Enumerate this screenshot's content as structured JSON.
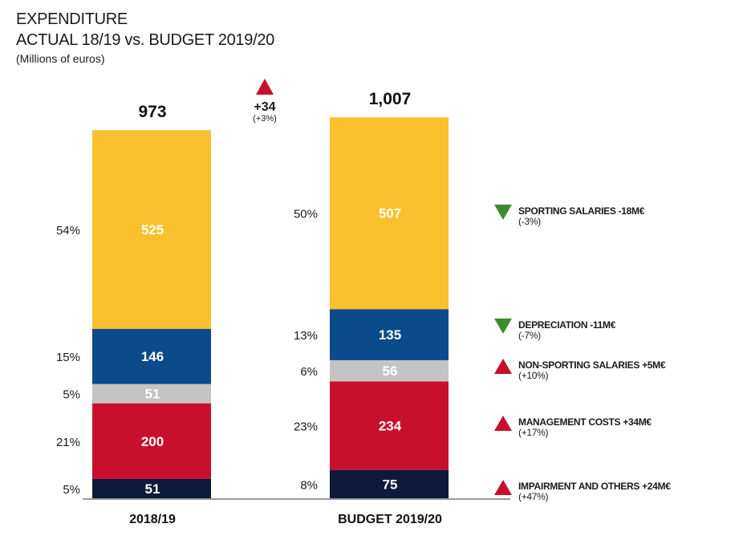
{
  "header": {
    "title": "EXPENDITURE",
    "subtitle": "ACTUAL 18/19 vs. BUDGET 2019/20",
    "units": "(Millions of euros)"
  },
  "difference": {
    "value": "+34",
    "pct": "(+3%)"
  },
  "colors": {
    "sporting_salaries": "#fbc02d",
    "depreciation": "#0b4a8b",
    "non_sporting_salaries": "#c4c4c4",
    "management_costs": "#c8102e",
    "impairment_and_others": "#0d1a3a",
    "decrease": "#3d8b2f",
    "increase": "#c8102e"
  },
  "legend": [
    {
      "label": "SPORTING SALARIES -18M€",
      "pct": "(-3%)",
      "dir": "down"
    },
    {
      "label": "DEPRECIATION -11M€",
      "pct": "(-7%)",
      "dir": "down"
    },
    {
      "label": "NON-SPORTING SALARIES +5M€",
      "pct": "(+10%)",
      "dir": "up"
    },
    {
      "label": "MANAGEMENT COSTS +34M€",
      "pct": "(+17%)",
      "dir": "up"
    },
    {
      "label": "IMPAIRMENT AND OTHERS +24M€",
      "pct": "(+47%)",
      "dir": "up"
    }
  ],
  "chart_data": {
    "type": "bar",
    "stacked": true,
    "title": "EXPENDITURE ACTUAL 18/19 vs. BUDGET 2019/20",
    "ylabel": "Millions of euros",
    "categories": [
      "2018/19",
      "BUDGET 2019/20"
    ],
    "totals": [
      "973",
      "1,007"
    ],
    "series": [
      {
        "name": "Impairment and others",
        "color_key": "impairment_and_others",
        "values": [
          51,
          75
        ],
        "labels": [
          "51",
          "75"
        ],
        "pcts": [
          "5%",
          "8%"
        ]
      },
      {
        "name": "Management costs",
        "color_key": "management_costs",
        "values": [
          200,
          234
        ],
        "labels": [
          "200",
          "234"
        ],
        "pcts": [
          "21%",
          "23%"
        ]
      },
      {
        "name": "Non-sporting salaries",
        "color_key": "non_sporting_salaries",
        "values": [
          51,
          56
        ],
        "labels": [
          "51",
          "56"
        ],
        "pcts": [
          "5%",
          "6%"
        ]
      },
      {
        "name": "Depreciation",
        "color_key": "depreciation",
        "values": [
          146,
          135
        ],
        "labels": [
          "146",
          "135"
        ],
        "pcts": [
          "15%",
          "13%"
        ]
      },
      {
        "name": "Sporting salaries",
        "color_key": "sporting_salaries",
        "values": [
          525,
          507
        ],
        "labels": [
          "525",
          "507"
        ],
        "pcts": [
          "54%",
          "50%"
        ]
      }
    ]
  }
}
